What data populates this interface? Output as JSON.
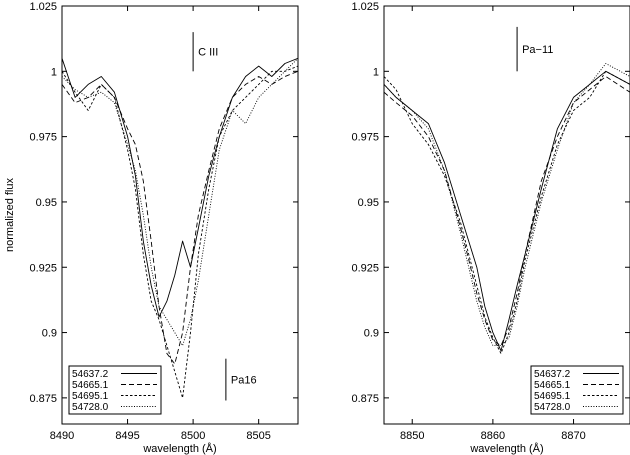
{
  "chart_data": [
    {
      "type": "line",
      "xlabel": "wavelength (Å)",
      "ylabel": "normalized flux",
      "xlim": [
        8490,
        8508
      ],
      "ylim": [
        0.865,
        1.025
      ],
      "xticks": [
        "8490",
        "8495",
        "8500",
        "8505"
      ],
      "yticks": [
        "0.875",
        "0.9",
        "0.925",
        "0.95",
        "0.975",
        "1",
        "1.025"
      ],
      "legend_position": "bottom-left",
      "annotations": [
        {
          "text": "C III",
          "x": 8500.0,
          "y_from": 1.0,
          "y_to": 1.015
        },
        {
          "text": "Pa16",
          "x": 8502.5,
          "y_from": 0.874,
          "y_to": 0.89
        }
      ],
      "series": [
        {
          "name": "54637.2",
          "dash": "solid",
          "x": [
            8490,
            8491,
            8492,
            8493,
            8494,
            8495,
            8495.6,
            8496.2,
            8496.8,
            8497.4,
            8498,
            8498.6,
            8499.2,
            8499.8,
            8500.4,
            8501.2,
            8502,
            8503,
            8504,
            8505,
            8506,
            8507,
            8508
          ],
          "y": [
            1.005,
            0.99,
            0.995,
            0.998,
            0.992,
            0.975,
            0.96,
            0.935,
            0.918,
            0.906,
            0.912,
            0.922,
            0.935,
            0.925,
            0.94,
            0.96,
            0.975,
            0.99,
            0.998,
            1.002,
            0.998,
            1.003,
            1.005
          ]
        },
        {
          "name": "54665.1",
          "dash": "dashed",
          "x": [
            8490,
            8491,
            8492,
            8493,
            8494,
            8495,
            8495.6,
            8496.2,
            8496.8,
            8497.4,
            8498,
            8498.6,
            8499.2,
            8499.8,
            8500.4,
            8501.2,
            8502,
            8503,
            8504,
            8505,
            8506,
            8507,
            8508
          ],
          "y": [
            0.995,
            0.988,
            0.99,
            0.995,
            0.99,
            0.978,
            0.972,
            0.958,
            0.935,
            0.91,
            0.892,
            0.888,
            0.9,
            0.925,
            0.945,
            0.962,
            0.978,
            0.99,
            0.995,
            0.998,
            0.995,
            0.998,
            1.0
          ]
        },
        {
          "name": "54695.1",
          "dash": "short-dash",
          "x": [
            8490,
            8491,
            8492,
            8493,
            8494,
            8495,
            8495.6,
            8496.2,
            8496.8,
            8497.4,
            8498,
            8498.6,
            8499.2,
            8499.8,
            8500.4,
            8501.2,
            8502,
            8503,
            8504,
            8505,
            8506,
            8507,
            8508
          ],
          "y": [
            1.0,
            0.992,
            0.985,
            0.995,
            0.99,
            0.97,
            0.955,
            0.93,
            0.912,
            0.905,
            0.895,
            0.885,
            0.875,
            0.9,
            0.93,
            0.955,
            0.975,
            0.985,
            0.99,
            0.995,
            1.0,
            1.0,
            1.002
          ]
        },
        {
          "name": "54728.0",
          "dash": "dotted",
          "x": [
            8490,
            8491,
            8492,
            8493,
            8494,
            8495,
            8495.6,
            8496.2,
            8496.8,
            8497.4,
            8498,
            8498.6,
            8499.2,
            8499.8,
            8500.4,
            8501.2,
            8502,
            8503,
            8504,
            8505,
            8506,
            8507,
            8508
          ],
          "y": [
            0.998,
            0.993,
            0.99,
            0.992,
            0.988,
            0.972,
            0.962,
            0.945,
            0.925,
            0.91,
            0.905,
            0.9,
            0.895,
            0.905,
            0.92,
            0.945,
            0.97,
            0.985,
            0.98,
            0.99,
            0.995,
            1.0,
            1.005
          ]
        }
      ]
    },
    {
      "type": "line",
      "xlabel": "wavelength (Å)",
      "ylabel": "",
      "xlim": [
        8846.5,
        8877
      ],
      "ylim": [
        0.865,
        1.025
      ],
      "xticks": [
        "8850",
        "8860",
        "8870"
      ],
      "yticks": [
        "0.875",
        "0.9",
        "0.925",
        "0.95",
        "0.975",
        "1",
        "1.025"
      ],
      "legend_position": "bottom-right",
      "annotations": [
        {
          "text": "Pa−11",
          "x": 8863.0,
          "y_from": 1.0,
          "y_to": 1.017
        }
      ],
      "series": [
        {
          "name": "54637.2",
          "dash": "solid",
          "x": [
            8846.5,
            8848,
            8850,
            8852,
            8854,
            8856,
            8857,
            8858,
            8859,
            8860,
            8861,
            8862,
            8863,
            8864,
            8866,
            8868,
            8870,
            8872,
            8874,
            8877
          ],
          "y": [
            0.995,
            0.99,
            0.985,
            0.98,
            0.965,
            0.945,
            0.935,
            0.925,
            0.91,
            0.9,
            0.893,
            0.905,
            0.918,
            0.93,
            0.955,
            0.978,
            0.99,
            0.995,
            1.0,
            0.995
          ]
        },
        {
          "name": "54665.1",
          "dash": "dashed",
          "x": [
            8846.5,
            8848,
            8850,
            8852,
            8854,
            8856,
            8857,
            8858,
            8859,
            8860,
            8861,
            8862,
            8863,
            8864,
            8866,
            8868,
            8870,
            8872,
            8874,
            8877
          ],
          "y": [
            0.992,
            0.988,
            0.983,
            0.975,
            0.962,
            0.94,
            0.928,
            0.915,
            0.905,
            0.897,
            0.895,
            0.902,
            0.915,
            0.93,
            0.958,
            0.975,
            0.988,
            0.993,
            0.998,
            0.992
          ]
        },
        {
          "name": "54695.1",
          "dash": "short-dash",
          "x": [
            8846.5,
            8848,
            8850,
            8852,
            8854,
            8856,
            8857,
            8858,
            8859,
            8860,
            8861,
            8862,
            8863,
            8864,
            8866,
            8868,
            8870,
            8872,
            8874,
            8877
          ],
          "y": [
            0.998,
            0.993,
            0.98,
            0.972,
            0.96,
            0.942,
            0.93,
            0.918,
            0.906,
            0.898,
            0.892,
            0.9,
            0.912,
            0.928,
            0.952,
            0.972,
            0.985,
            0.99,
            1.0,
            0.995
          ]
        },
        {
          "name": "54728.0",
          "dash": "dotted",
          "x": [
            8846.5,
            8848,
            8850,
            8852,
            8854,
            8856,
            8857,
            8858,
            8859,
            8860,
            8861,
            8862,
            8863,
            8864,
            8866,
            8868,
            8870,
            8872,
            8874,
            8877
          ],
          "y": [
            0.995,
            0.99,
            0.985,
            0.978,
            0.962,
            0.938,
            0.925,
            0.912,
            0.902,
            0.895,
            0.895,
            0.898,
            0.91,
            0.925,
            0.95,
            0.97,
            0.988,
            0.995,
            1.003,
            0.998
          ]
        }
      ]
    }
  ]
}
